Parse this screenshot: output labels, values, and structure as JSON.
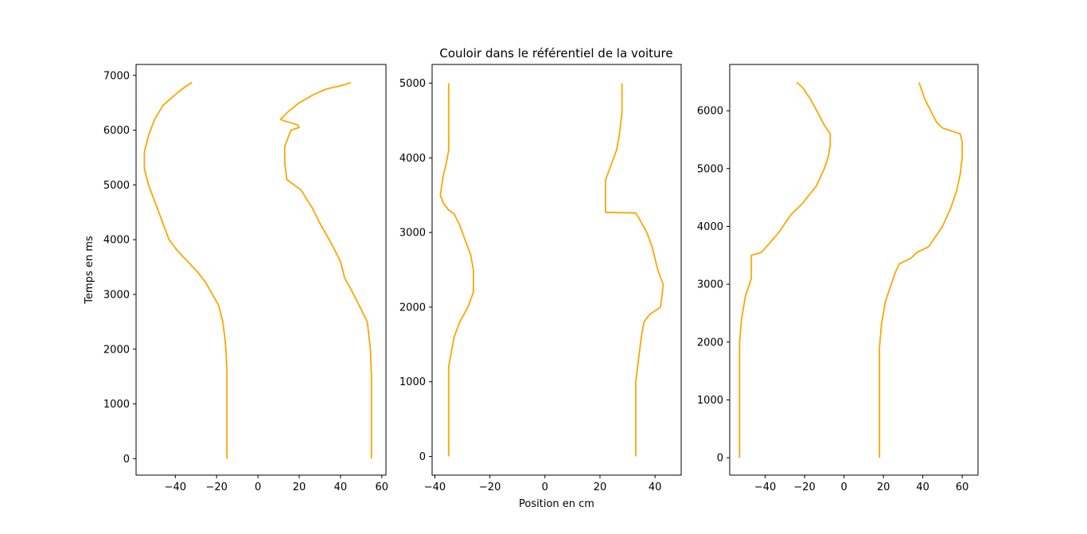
{
  "figure_title": "Couloir dans le référentiel de la voiture",
  "line_color": "#FFA500",
  "chart_data": [
    {
      "type": "line",
      "title": "",
      "xlabel": "",
      "ylabel": "Temps en ms",
      "xlim": [
        -59,
        62
      ],
      "ylim": [
        -300,
        7200
      ],
      "xticks": [
        -40,
        -20,
        0,
        20,
        40,
        60
      ],
      "yticks": [
        0,
        1000,
        2000,
        3000,
        4000,
        5000,
        6000,
        7000
      ],
      "series": [
        {
          "points": [
            [
              -15,
              0
            ],
            [
              -15,
              700
            ],
            [
              -15,
              1600
            ],
            [
              -15.5,
              2000
            ],
            [
              -16,
              2200
            ],
            [
              -17,
              2500
            ],
            [
              -19,
              2800
            ],
            [
              -22,
              3000
            ],
            [
              -25,
              3200
            ],
            [
              -29,
              3400
            ],
            [
              -34,
              3600
            ],
            [
              -39,
              3800
            ],
            [
              -43,
              4000
            ],
            [
              -46,
              4300
            ],
            [
              -50,
              4700
            ],
            [
              -53,
              5000
            ],
            [
              -55,
              5300
            ],
            [
              -55,
              5600
            ],
            [
              -53,
              5900
            ],
            [
              -50,
              6200
            ],
            [
              -46,
              6450
            ],
            [
              -40,
              6650
            ],
            [
              -35,
              6800
            ],
            [
              -32,
              6870
            ]
          ]
        },
        {
          "points": [
            [
              55,
              0
            ],
            [
              55,
              500
            ],
            [
              55,
              900
            ],
            [
              55,
              1500
            ],
            [
              54.5,
              2000
            ],
            [
              53,
              2500
            ],
            [
              49,
              2800
            ],
            [
              45,
              3100
            ],
            [
              42,
              3300
            ],
            [
              40,
              3600
            ],
            [
              36,
              3900
            ],
            [
              30,
              4300
            ],
            [
              26,
              4600
            ],
            [
              21,
              4900
            ],
            [
              14,
              5100
            ],
            [
              13,
              5400
            ],
            [
              13,
              5700
            ],
            [
              16,
              6000
            ],
            [
              20,
              6050
            ],
            [
              19,
              6100
            ],
            [
              12,
              6180
            ],
            [
              11,
              6200
            ],
            [
              15,
              6350
            ],
            [
              20,
              6500
            ],
            [
              27,
              6650
            ],
            [
              33,
              6750
            ],
            [
              42,
              6830
            ],
            [
              45,
              6870
            ]
          ]
        }
      ]
    },
    {
      "type": "line",
      "title": "",
      "xlabel": "Position en cm",
      "ylabel": "",
      "xlim": [
        -41,
        49.5
      ],
      "ylim": [
        -250,
        5250
      ],
      "xticks": [
        -40,
        -20,
        0,
        20,
        40
      ],
      "yticks": [
        0,
        1000,
        2000,
        3000,
        4000,
        5000
      ],
      "series": [
        {
          "points": [
            [
              -35,
              0
            ],
            [
              -35,
              1000
            ],
            [
              -35,
              1200
            ],
            [
              -34,
              1400
            ],
            [
              -33,
              1600
            ],
            [
              -31,
              1800
            ],
            [
              -28,
              2000
            ],
            [
              -26,
              2200
            ],
            [
              -26,
              2500
            ],
            [
              -27,
              2700
            ],
            [
              -29,
              2900
            ],
            [
              -31,
              3100
            ],
            [
              -33,
              3250
            ],
            [
              -35,
              3300
            ],
            [
              -37,
              3400
            ],
            [
              -38,
              3500
            ],
            [
              -37,
              3750
            ],
            [
              -36,
              3900
            ],
            [
              -35,
              4100
            ],
            [
              -35,
              4500
            ],
            [
              -35,
              5000
            ]
          ]
        },
        {
          "points": [
            [
              33,
              0
            ],
            [
              33,
              500
            ],
            [
              33,
              1000
            ],
            [
              34,
              1300
            ],
            [
              35,
              1600
            ],
            [
              36,
              1800
            ],
            [
              38,
              1900
            ],
            [
              42,
              2000
            ],
            [
              43,
              2300
            ],
            [
              41,
              2500
            ],
            [
              39,
              2800
            ],
            [
              37,
              3000
            ],
            [
              34,
              3200
            ],
            [
              33,
              3260
            ],
            [
              22,
              3270
            ],
            [
              22,
              3300
            ],
            [
              22,
              3500
            ],
            [
              22,
              3700
            ],
            [
              24,
              3900
            ],
            [
              26,
              4100
            ],
            [
              27,
              4300
            ],
            [
              28,
              4600
            ],
            [
              28,
              5000
            ]
          ]
        }
      ]
    },
    {
      "type": "line",
      "title": "",
      "xlabel": "",
      "ylabel": "",
      "xlim": [
        -58,
        68
      ],
      "ylim": [
        -300,
        6800
      ],
      "xticks": [
        -40,
        -20,
        0,
        20,
        40,
        60
      ],
      "yticks": [
        0,
        1000,
        2000,
        3000,
        4000,
        5000,
        6000
      ],
      "series": [
        {
          "points": [
            [
              -53,
              0
            ],
            [
              -53,
              1000
            ],
            [
              -53,
              2000
            ],
            [
              -52,
              2400
            ],
            [
              -50,
              2800
            ],
            [
              -47,
              3100
            ],
            [
              -47,
              3500
            ],
            [
              -42,
              3550
            ],
            [
              -38,
              3700
            ],
            [
              -33,
              3900
            ],
            [
              -27,
              4200
            ],
            [
              -21,
              4400
            ],
            [
              -14,
              4700
            ],
            [
              -10,
              5000
            ],
            [
              -8,
              5200
            ],
            [
              -7,
              5400
            ],
            [
              -7,
              5600
            ],
            [
              -10,
              5750
            ],
            [
              -13,
              5950
            ],
            [
              -17,
              6200
            ],
            [
              -21,
              6400
            ],
            [
              -24,
              6490
            ]
          ]
        },
        {
          "points": [
            [
              18,
              0
            ],
            [
              18,
              1000
            ],
            [
              18,
              1900
            ],
            [
              19,
              2300
            ],
            [
              21,
              2700
            ],
            [
              24,
              3000
            ],
            [
              26,
              3200
            ],
            [
              28,
              3350
            ],
            [
              34,
              3450
            ],
            [
              37,
              3550
            ],
            [
              43,
              3650
            ],
            [
              50,
              4000
            ],
            [
              54,
              4300
            ],
            [
              57,
              4600
            ],
            [
              59,
              4900
            ],
            [
              60,
              5200
            ],
            [
              60,
              5450
            ],
            [
              59,
              5600
            ],
            [
              50,
              5700
            ],
            [
              47,
              5800
            ],
            [
              44,
              6000
            ],
            [
              41,
              6200
            ],
            [
              39,
              6400
            ],
            [
              38,
              6490
            ]
          ]
        }
      ]
    }
  ]
}
